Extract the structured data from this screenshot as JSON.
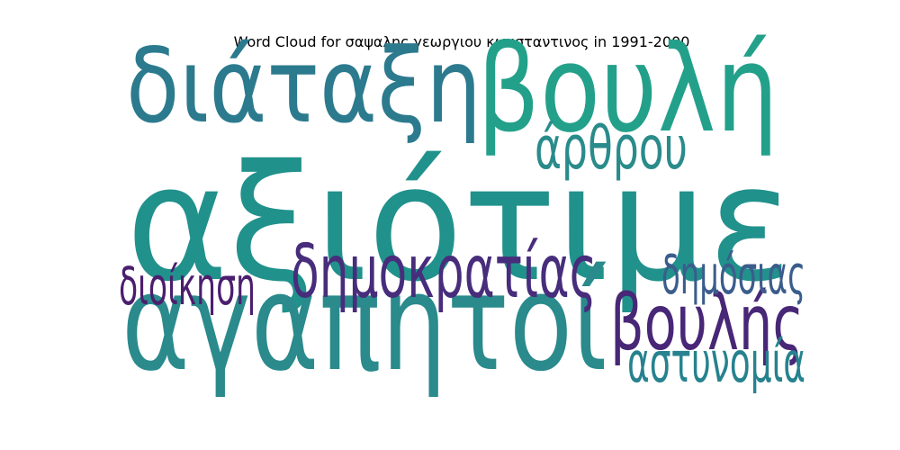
{
  "chart_data": {
    "type": "wordcloud",
    "title": "Word Cloud for σαψαλης γεωργιου κωνσταντινος in 1991-2000",
    "words": [
      {
        "text": "αξιότιμε",
        "weight": 1.0,
        "color": "#21918c"
      },
      {
        "text": "αγαπητοί",
        "weight": 0.82,
        "color": "#2a8a8c"
      },
      {
        "text": "βουλή",
        "weight": 0.72,
        "color": "#23a08a"
      },
      {
        "text": "διάταξη",
        "weight": 0.6,
        "color": "#2c7a8e"
      },
      {
        "text": "δημοκρατίας",
        "weight": 0.4,
        "color": "#472d7b"
      },
      {
        "text": "βουλής",
        "weight": 0.42,
        "color": "#482777"
      },
      {
        "text": "άρθρου",
        "weight": 0.3,
        "color": "#2a8b8b"
      },
      {
        "text": "αστυνομία",
        "weight": 0.28,
        "color": "#26828e"
      },
      {
        "text": "δημόσιας",
        "weight": 0.26,
        "color": "#3b5d8c"
      },
      {
        "text": "διοίκηση",
        "weight": 0.25,
        "color": "#4b1e6e"
      }
    ]
  }
}
